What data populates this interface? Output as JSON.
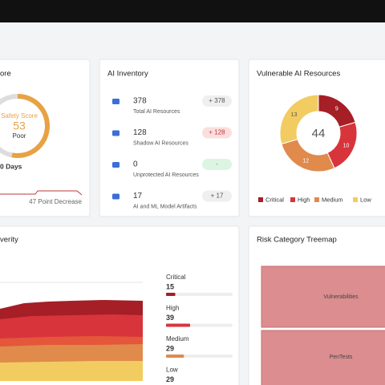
{
  "cards": {
    "safety": {
      "title": "ore",
      "gauge_label": "Safety Score",
      "score": 53,
      "rating": "Poor",
      "period": "0 Days",
      "change": "47 Point Decrease"
    },
    "inventory": {
      "title": "AI Inventory",
      "items": [
        {
          "count": 378,
          "label": "Total AI Resources",
          "badge": "+ 378"
        },
        {
          "count": 128,
          "label": "Shadow AI Resources",
          "badge": "+ 128"
        },
        {
          "count": 0,
          "label": "Unprotected AI Resources",
          "badge": "-"
        },
        {
          "count": 17,
          "label": "AI and ML Model Artifacts",
          "badge": "+ 17"
        }
      ]
    },
    "vulnerable": {
      "title": "Vulnerable AI Resources",
      "total": 44,
      "segments": [
        {
          "name": "Critical",
          "value": 9,
          "color": "#a61e26"
        },
        {
          "name": "High",
          "value": 10,
          "color": "#d8343c"
        },
        {
          "name": "Medium",
          "value": 12,
          "color": "#e08a4c"
        },
        {
          "name": "Low",
          "value": 13,
          "color": "#f2cc60"
        }
      ]
    },
    "severity": {
      "title": "verity",
      "levels": [
        {
          "name": "Critical",
          "value": 15,
          "color": "#a61e26"
        },
        {
          "name": "High",
          "value": 39,
          "color": "#d8343c"
        },
        {
          "name": "Medium",
          "value": 29,
          "color": "#e08a4c"
        },
        {
          "name": "Low",
          "value": 29,
          "color": "#f2cc60"
        }
      ]
    },
    "treemap": {
      "title": "Risk Category Treemap",
      "cells": [
        "Vulnerabilities",
        "PenTests"
      ]
    }
  }
}
